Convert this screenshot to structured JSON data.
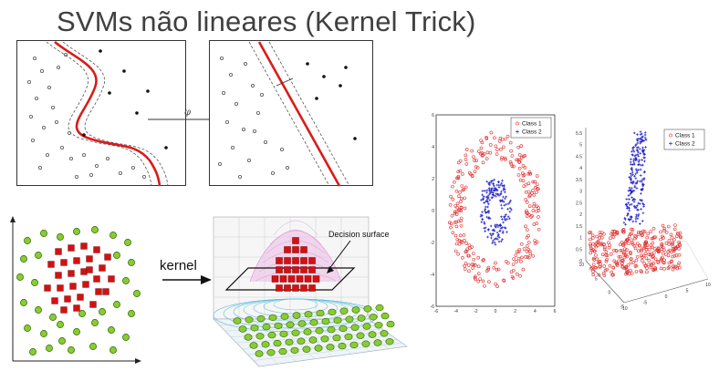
{
  "title": "SVMs não lineares (Kernel Trick)",
  "mapping_symbol": "φ",
  "kernel_label": "kernel",
  "decision_surface_label": "Decision surface",
  "scatter_left": {
    "legend": [
      "Class 1",
      "Class 2"
    ],
    "x_ticks": [
      "-6",
      "-4",
      "-2",
      "0",
      "2",
      "4",
      "6"
    ],
    "y_ticks": [
      "-6",
      "-4",
      "-2",
      "0",
      "2",
      "4",
      "6"
    ]
  },
  "scatter_right": {
    "legend": [
      "Class 1",
      "Class 2"
    ],
    "z_ticks": [
      "0",
      "0.5",
      "1",
      "1.5",
      "2",
      "2.5",
      "3",
      "3.5",
      "4",
      "4.5",
      "5",
      "5.5"
    ],
    "x_ticks": [
      "-10",
      "-5",
      "0",
      "5",
      "10"
    ],
    "y_ticks": [
      "10",
      "5",
      "0",
      "-5"
    ]
  },
  "colors": {
    "class1": "#e03030",
    "class2": "#2020c8",
    "red_square": "#d41010",
    "green_circle": "#88cc33",
    "boundary": "#d81c1c"
  }
}
